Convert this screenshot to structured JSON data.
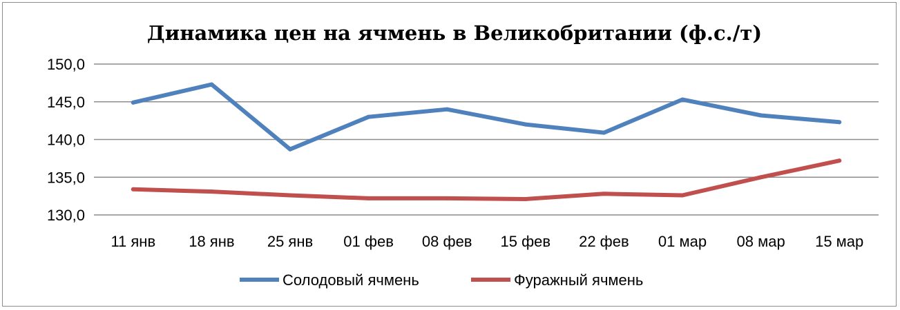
{
  "chart_data": {
    "type": "line",
    "title": "Динамика цен на ячмень в Великобритании (ф.с./т)",
    "categories": [
      "11 янв",
      "18 янв",
      "25 янв",
      "01 фев",
      "08 фев",
      "15 фев",
      "22 фев",
      "01 мар",
      "08 мар",
      "15 мар"
    ],
    "series": [
      {
        "name": "Солодовый ячмень",
        "color": "#4f81bd",
        "values": [
          144.9,
          147.3,
          138.7,
          143.0,
          144.0,
          142.0,
          140.9,
          145.3,
          143.2,
          142.3
        ]
      },
      {
        "name": "Фуражный ячмень",
        "color": "#c0504d",
        "values": [
          133.4,
          133.1,
          132.6,
          132.2,
          132.2,
          132.1,
          132.8,
          132.6,
          135.0,
          137.2
        ]
      }
    ],
    "ylim": [
      130,
      150
    ],
    "yticks": [
      "130,0",
      "135,0",
      "140,0",
      "145,0",
      "150,0"
    ],
    "grid": true,
    "legend_position": "bottom"
  }
}
